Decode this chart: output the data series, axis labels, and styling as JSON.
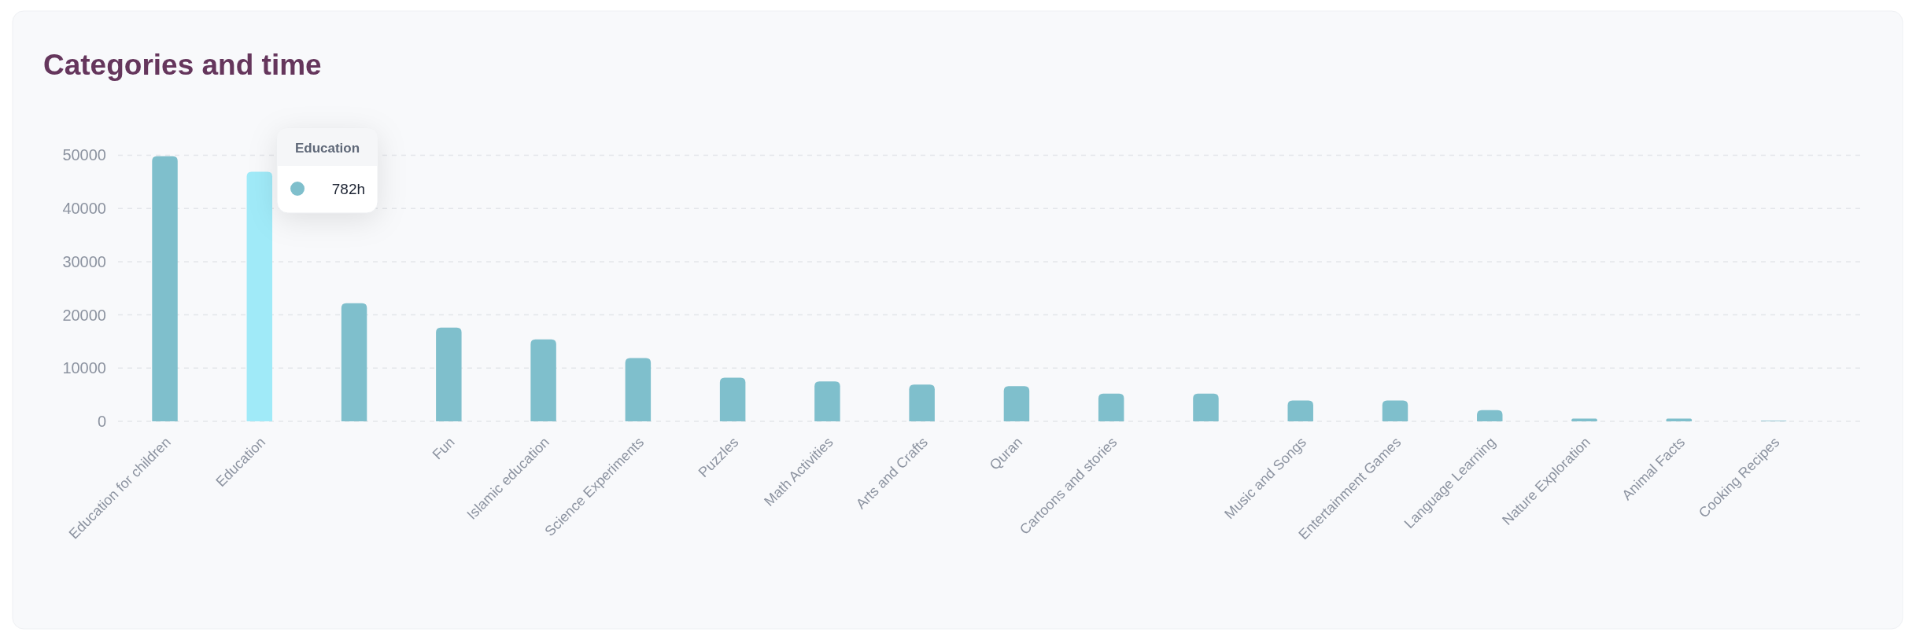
{
  "chart_data": {
    "type": "bar",
    "title": "Categories and time",
    "categories": [
      "Education for children",
      "Education",
      null,
      "Fun",
      "Islamic education",
      "Science Experiments",
      "Puzzles",
      "Math Activities",
      "Arts and Crafts",
      "Quran",
      "Cartoons and stories",
      null,
      "Music and Songs",
      "Entertainment Games",
      "Language Learning",
      "Nature Exploration",
      "Animal Facts",
      "Cooking Recipes"
    ],
    "values": [
      49800,
      46900,
      22200,
      17600,
      15400,
      11900,
      8200,
      7500,
      6900,
      6600,
      5200,
      5200,
      3900,
      3900,
      2100,
      500,
      500,
      100
    ],
    "colors": [
      "#7fbfcc",
      "#a0eaf8",
      "#7fbfcc",
      "#7fbfcc",
      "#7fbfcc",
      "#7fbfcc",
      "#7fbfcc",
      "#7fbfcc",
      "#7fbfcc",
      "#7fbfcc",
      "#7fbfcc",
      "#7fbfcc",
      "#7fbfcc",
      "#7fbfcc",
      "#7fbfcc",
      "#7fbfcc",
      "#7fbfcc",
      "#7fbfcc"
    ],
    "ylim": [
      0,
      50000
    ],
    "yticks": [
      0,
      10000,
      20000,
      30000,
      40000,
      50000
    ],
    "grid": "y",
    "annotations": [
      "Education",
      "782h"
    ]
  }
}
